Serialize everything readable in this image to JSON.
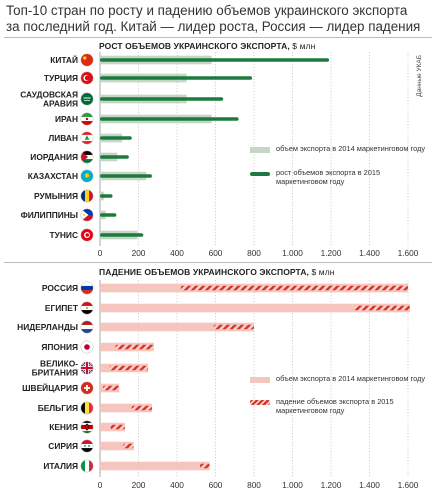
{
  "headline": [
    "Топ-10 стран по росту и падению объемов украинского экспорта",
    "за последний год. Китай — лидер роста, Россия — лидер падения"
  ],
  "source_note": "Данные УКАБ",
  "colors": {
    "growth_2014": "#c5d6c5",
    "growth_2015": "#1d7a3e",
    "decline_2014": "#f4c6bd",
    "decline_2015": "#d8302a",
    "hatch_bg": "#f7d2cb"
  },
  "chart_data": [
    {
      "type": "bar",
      "title": "РОСТ ОБЪЕМОВ УКРАИНСКОГО ЭКСПОРТА,",
      "unit": "$ млн",
      "categories": [
        "КИТАЙ",
        "ТУРЦИЯ",
        "САУДОВСКАЯ\nАРАВИЯ",
        "ИРАН",
        "ЛИВАН",
        "ИОРДАНИЯ",
        "КАЗАХСТАН",
        "РУМЫНИЯ",
        "ФИЛИППИНЫ",
        "ТУНИС"
      ],
      "flags": [
        "china-flag-icon",
        "turkey-flag-icon",
        "saudi-arabia-flag-icon",
        "iran-flag-icon",
        "lebanon-flag-icon",
        "jordan-flag-icon",
        "kazakhstan-flag-icon",
        "romania-flag-icon",
        "philippines-flag-icon",
        "tunisia-flag-icon"
      ],
      "series": [
        {
          "name": "объем экспорта в 2014 маркетинговом году",
          "values": [
            580,
            450,
            450,
            580,
            115,
            90,
            240,
            20,
            30,
            195
          ]
        },
        {
          "name": "рост объемов экспорта в 2015 маркетинговом году",
          "values": [
            1190,
            790,
            640,
            720,
            165,
            150,
            270,
            65,
            85,
            225
          ]
        }
      ],
      "x_ticks": [
        "0",
        "200",
        "400",
        "600",
        "800",
        "1.000",
        "1.200",
        "1.400",
        "1.600"
      ],
      "xlim": [
        0,
        1600
      ],
      "grid": true,
      "legend_position": "right"
    },
    {
      "type": "bar",
      "title": "ПАДЕНИЕ ОБЪЕМОВ УКРАИНСКОГО ЭКСПОРТА,",
      "unit": "$ млн",
      "categories": [
        "РОССИЯ",
        "ЕГИПЕТ",
        "НИДЕРЛАНДЫ",
        "ЯПОНИЯ",
        "ВЕЛИКО-\nБРИТАНИЯ",
        "ШВЕЙЦАРИЯ",
        "БЕЛЬГИЯ",
        "КЕНИЯ",
        "СИРИЯ",
        "ИТАЛИЯ"
      ],
      "flags": [
        "russia-flag-icon",
        "egypt-flag-icon",
        "netherlands-flag-icon",
        "japan-flag-icon",
        "great-britain-flag-icon",
        "switzerland-flag-icon",
        "belgium-flag-icon",
        "kenya-flag-icon",
        "syria-flag-icon",
        "italy-flag-icon"
      ],
      "series": [
        {
          "name": "объем экспорта в 2014 маркетинговом году",
          "values": [
            1600,
            1610,
            800,
            280,
            250,
            100,
            270,
            130,
            175,
            570
          ]
        },
        {
          "name": "падение объемов экспорта в 2015 маркетинговом году",
          "values": [
            420,
            1320,
            590,
            80,
            50,
            15,
            165,
            55,
            120,
            520
          ]
        }
      ],
      "x_ticks": [
        "0",
        "200",
        "400",
        "600",
        "800",
        "1.000",
        "1.200",
        "1.400",
        "1.600"
      ],
      "xlim": [
        0,
        1600
      ],
      "grid": true,
      "legend_position": "right"
    }
  ]
}
